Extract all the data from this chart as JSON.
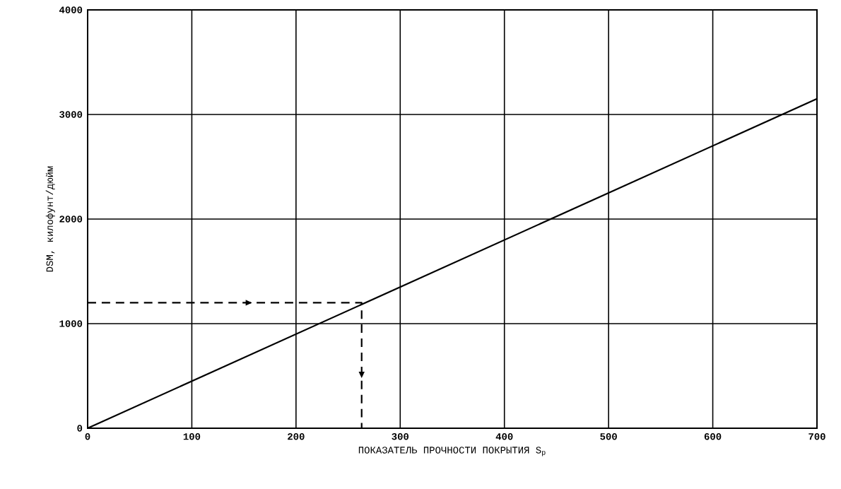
{
  "chart_data": {
    "type": "line",
    "xlabel": "ПОКАЗАТЕЛЬ ПРОЧНОСТИ ПОКРЫТИЯ S$_{р}$",
    "ylabel": "DSM, килофунт/дюйм",
    "xlim": [
      0,
      700
    ],
    "ylim": [
      0,
      4000
    ],
    "xticks": [
      0,
      100,
      200,
      300,
      400,
      500,
      600,
      700
    ],
    "yticks": [
      0,
      1000,
      2000,
      3000,
      4000
    ],
    "grid": true,
    "series": [
      {
        "color": "#000000",
        "x": [
          0,
          700
        ],
        "values": [
          0,
          3150
        ],
        "line_style": "solid"
      },
      {
        "color": "#000000",
        "x": [
          0,
          263,
          263
        ],
        "values": [
          1200,
          1200,
          0
        ],
        "line_style": "dashed"
      }
    ]
  }
}
